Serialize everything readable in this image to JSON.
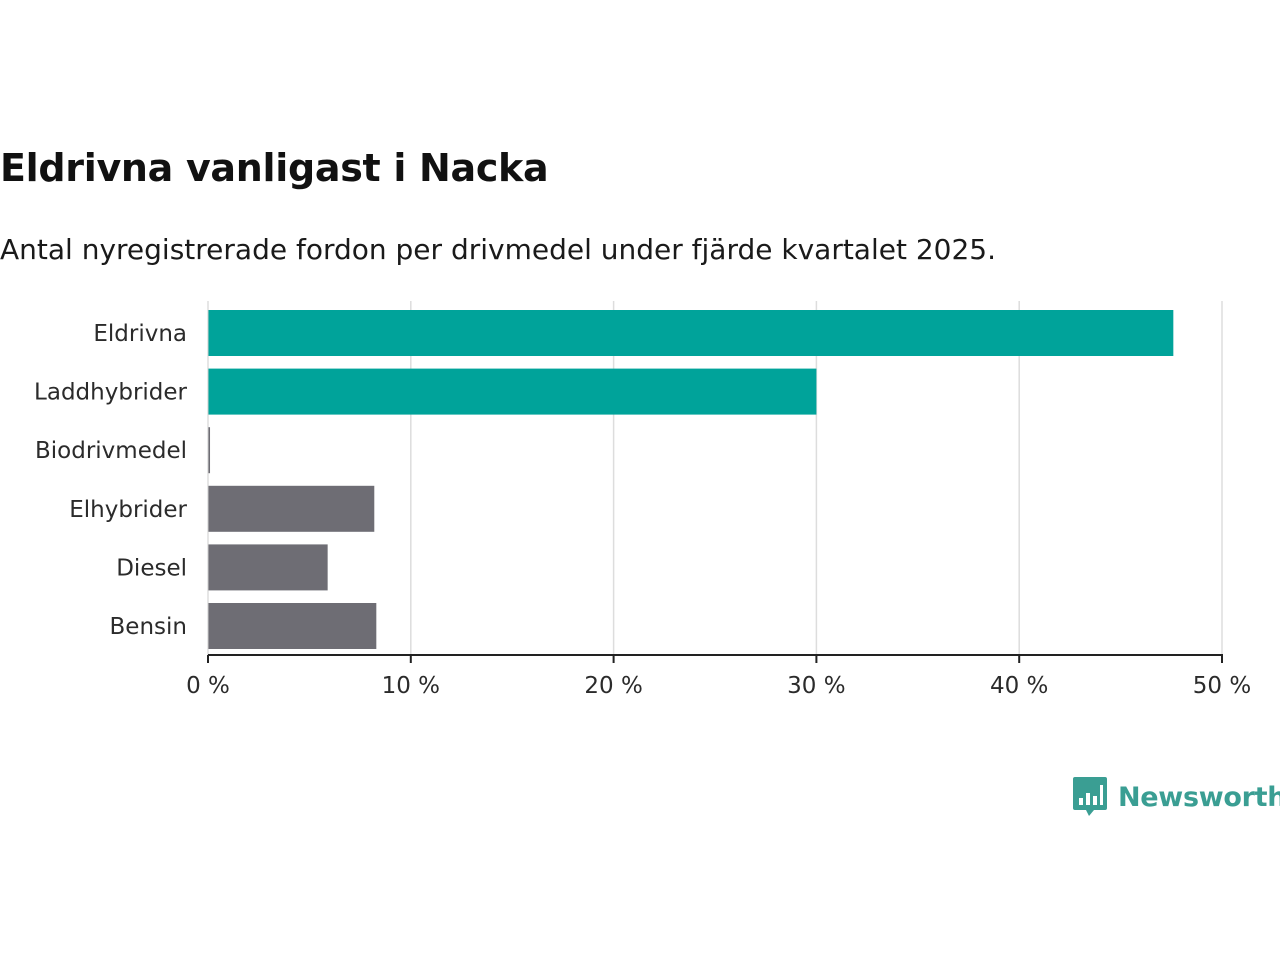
{
  "chart_data": {
    "type": "bar",
    "orientation": "horizontal",
    "title": "Eldrivna vanligast i Nacka",
    "subtitle": "Antal nyregistrerade fordon per drivmedel under fjärde kvartalet 2025.",
    "categories": [
      "Eldrivna",
      "Laddhybrider",
      "Biodrivmedel",
      "Elhybrider",
      "Diesel",
      "Bensin"
    ],
    "values": [
      47.6,
      30.0,
      0.1,
      8.2,
      5.9,
      8.3
    ],
    "unit": "%",
    "xlim": [
      0,
      50
    ],
    "xticks": [
      0,
      10,
      20,
      30,
      40,
      50
    ],
    "xtick_labels": [
      "0 %",
      "10 %",
      "20 %",
      "30 %",
      "40 %",
      "50 %"
    ],
    "highlighted": [
      true,
      true,
      false,
      false,
      false,
      false
    ],
    "colors": {
      "highlight": "#00a39a",
      "other": "#6e6d74",
      "grid": "#dddddd",
      "axis": "#222222"
    },
    "grid": true,
    "xlabel": "",
    "ylabel": ""
  },
  "brand": {
    "name": "Newsworthy",
    "icon": "newsworthy-logo-icon",
    "color": "#3a9e93"
  }
}
